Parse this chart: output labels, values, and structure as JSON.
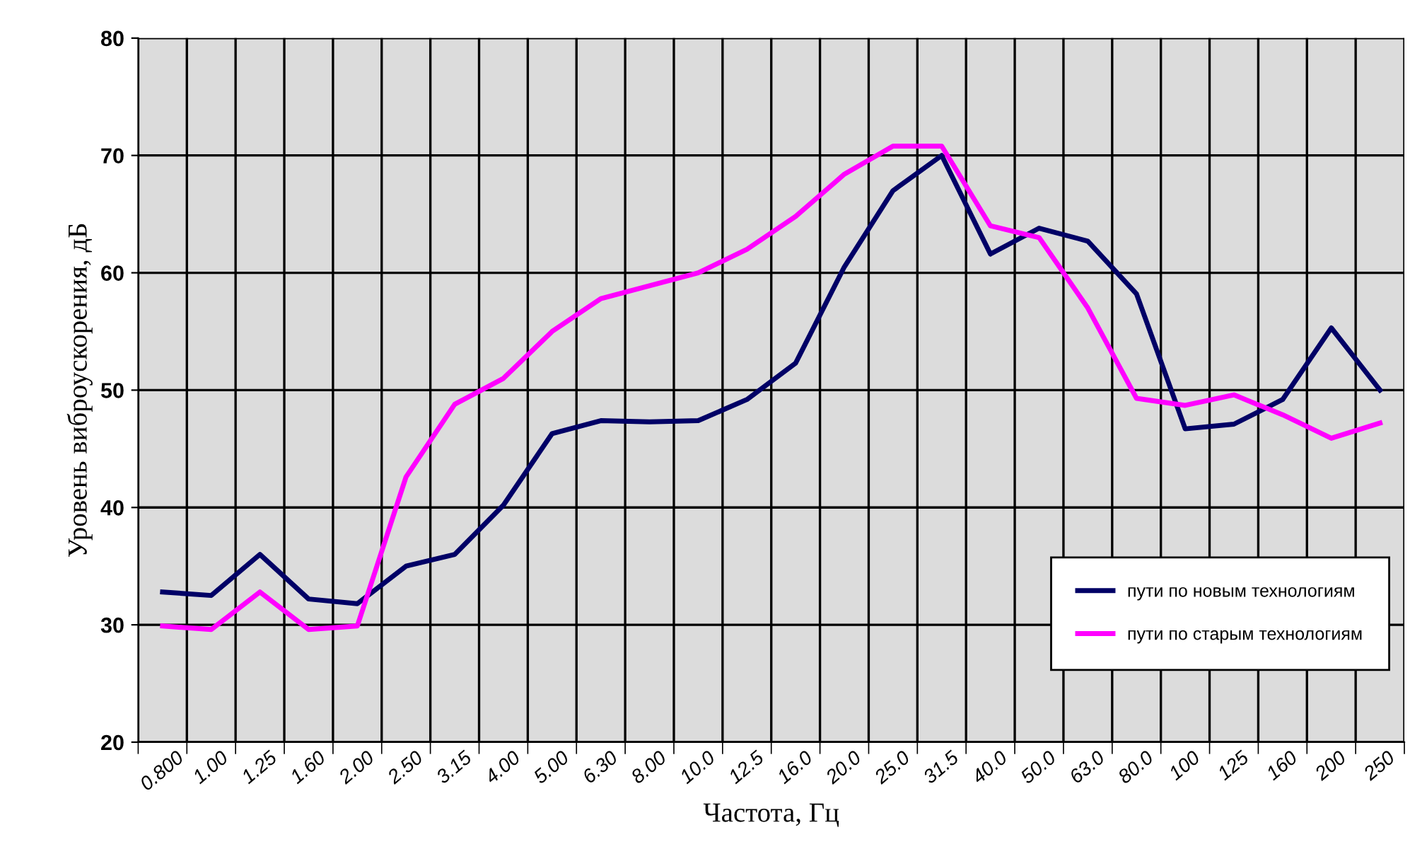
{
  "chart_data": {
    "type": "line",
    "xlabel": "Частота, Гц",
    "ylabel": "Уровень виброускорения, дБ",
    "categories": [
      "0.800",
      "1.00",
      "1.25",
      "1.60",
      "2.00",
      "2.50",
      "3.15",
      "4.00",
      "5.00",
      "6.30",
      "8.00",
      "10.0",
      "12.5",
      "16.0",
      "20.0",
      "25.0",
      "31.5",
      "40.0",
      "50.0",
      "63.0",
      "80.0",
      "100",
      "125",
      "160",
      "200",
      "250"
    ],
    "series": [
      {
        "name": "пути по новым технологиям",
        "color": "#000066",
        "values": [
          32.8,
          32.5,
          36.0,
          32.2,
          31.8,
          35.0,
          36.0,
          40.2,
          46.3,
          47.4,
          47.3,
          47.4,
          49.2,
          52.3,
          60.5,
          67.0,
          70.0,
          61.6,
          63.8,
          62.7,
          58.2,
          46.7,
          47.1,
          49.2,
          55.3,
          50.0
        ]
      },
      {
        "name": "пути по старым технологиям",
        "color": "#ff00ff",
        "values": [
          29.9,
          29.6,
          32.8,
          29.6,
          29.9,
          42.6,
          48.8,
          51.0,
          55.0,
          57.8,
          58.9,
          60.0,
          62.0,
          64.8,
          68.4,
          70.8,
          70.8,
          64.0,
          63.0,
          57.0,
          49.3,
          48.7,
          49.6,
          47.9,
          45.9,
          47.2
        ]
      }
    ],
    "ylim": [
      20,
      80
    ],
    "yticks": [
      20,
      30,
      40,
      50,
      60,
      70,
      80
    ],
    "grid": true,
    "legend": "bottom right",
    "marker": "none",
    "line_style": "solid"
  }
}
